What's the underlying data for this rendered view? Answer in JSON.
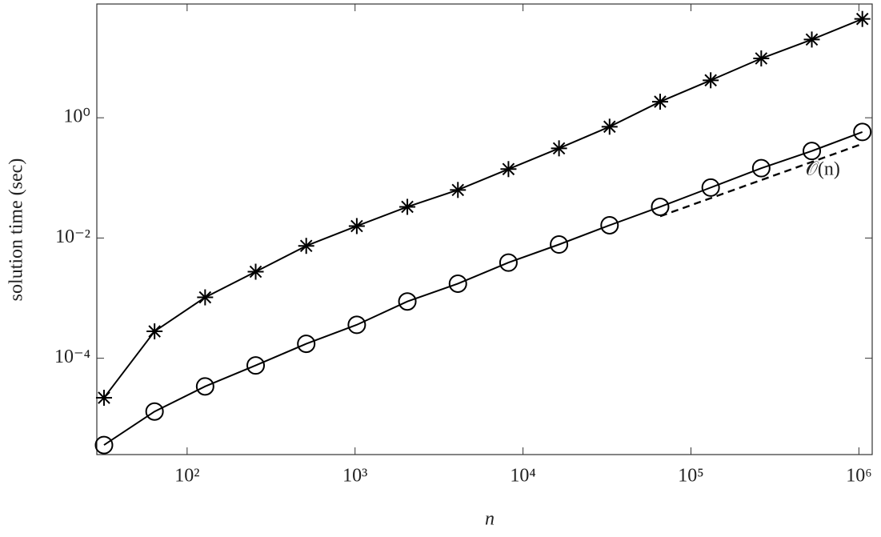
{
  "chart_data": {
    "type": "line",
    "xlabel": "n",
    "ylabel": "solution time (sec)",
    "xscale": "log",
    "yscale": "log",
    "xlim": [
      29,
      1200000
    ],
    "ylim": [
      2.5e-06,
      78
    ],
    "xticks": [
      {
        "value": 100,
        "label": "10²"
      },
      {
        "value": 1000,
        "label": "10³"
      },
      {
        "value": 10000,
        "label": "10⁴"
      },
      {
        "value": 100000,
        "label": "10⁵"
      },
      {
        "value": 1000000,
        "label": "10⁶"
      }
    ],
    "yticks": [
      {
        "value": 0.0001,
        "label": "10⁻⁴"
      },
      {
        "value": 0.01,
        "label": "10⁻²"
      },
      {
        "value": 1,
        "label": "10⁰"
      }
    ],
    "x": [
      32,
      64,
      128,
      256,
      512,
      1024,
      2048,
      4096,
      8192,
      16384,
      32768,
      65536,
      131072,
      262144,
      524288,
      1048576
    ],
    "series": [
      {
        "marker": "star",
        "color": "#000000",
        "values": [
          2.2e-05,
          0.00028,
          0.00103,
          0.00275,
          0.0074,
          0.0158,
          0.033,
          0.063,
          0.14,
          0.31,
          0.71,
          1.85,
          4.2,
          9.7,
          20,
          44
        ]
      },
      {
        "marker": "circle",
        "color": "#000000",
        "values": [
          3.6e-06,
          1.3e-05,
          3.4e-05,
          7.6e-05,
          0.000174,
          0.00036,
          0.00088,
          0.00174,
          0.0039,
          0.0078,
          0.0163,
          0.033,
          0.069,
          0.145,
          0.28,
          0.58
        ]
      }
    ],
    "reference": {
      "label": "𝒪(n)",
      "x": [
        65536,
        1048576
      ],
      "values": [
        0.023,
        0.368
      ],
      "dash": true
    }
  }
}
